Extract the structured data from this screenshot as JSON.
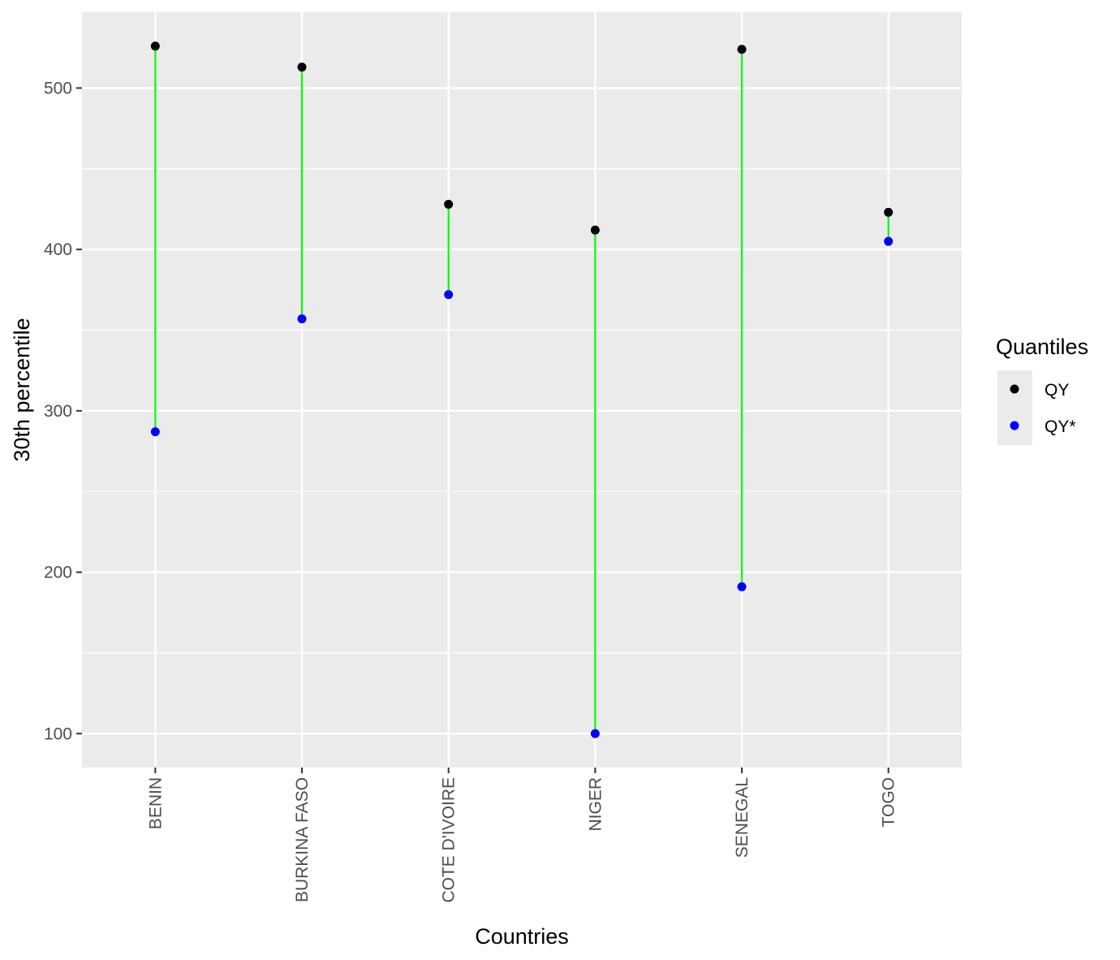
{
  "chart_data": {
    "type": "scatter",
    "xlabel": "Countries",
    "ylabel": "30th percentile",
    "categories": [
      "BENIN",
      "BURKINA FASO",
      "COTE D'IVOIRE",
      "NIGER",
      "SENEGAL",
      "TOGO"
    ],
    "y_ticks": [
      100,
      200,
      300,
      400,
      500
    ],
    "ylim": [
      79,
      547
    ],
    "grid": true,
    "legend": {
      "title": "Quantiles",
      "position": "right"
    },
    "series": [
      {
        "name": "QY",
        "color": "#000000",
        "values": [
          526,
          513,
          428,
          412,
          524,
          423
        ]
      },
      {
        "name": "QY*",
        "color": "#0000ff",
        "values": [
          287,
          357,
          372,
          100,
          191,
          405
        ]
      }
    ],
    "segment_color": "#00ff00"
  }
}
